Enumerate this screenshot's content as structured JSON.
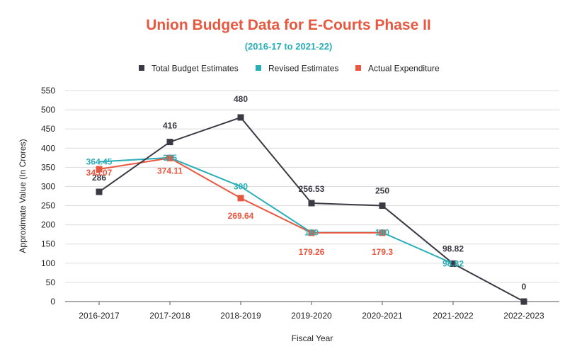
{
  "chart_data": {
    "type": "line",
    "title": "Union Budget Data for E-Courts Phase II",
    "subtitle": "(2016-17 to 2021-22)",
    "xlabel": "Fiscal Year",
    "ylabel": "Approximate Value (In Crores)",
    "categories": [
      "2016-2017",
      "2017-2018",
      "2018-2019",
      "2019-2020",
      "2020-2021",
      "2021-2022",
      "2022-2023"
    ],
    "ylim": [
      0,
      550
    ],
    "yticks": [
      0,
      50,
      100,
      150,
      200,
      250,
      300,
      350,
      400,
      450,
      500,
      550
    ],
    "grid": true,
    "legend_position": "top",
    "series": [
      {
        "name": "Total Budget Estimates",
        "color": "#3b3a44",
        "marker": "square",
        "values": [
          286,
          416,
          480,
          256.53,
          250,
          98.82,
          0
        ],
        "labels": [
          "286",
          "416",
          "480",
          "256.53",
          "250",
          "98.82",
          "0"
        ]
      },
      {
        "name": "Revised Estimates",
        "color": "#2aaeb8",
        "marker": "none",
        "values": [
          364.45,
          375,
          300,
          180,
          180,
          98.82,
          null
        ],
        "labels": [
          "364.45",
          "375",
          "300",
          "180",
          "180",
          "98.82",
          null
        ]
      },
      {
        "name": "Actual Expenditure",
        "color": "#e8573f",
        "marker": "square",
        "values": [
          345.07,
          374.11,
          269.64,
          179.26,
          179.3,
          null,
          null
        ],
        "labels": [
          "345.07",
          "374.11",
          "269.64",
          "179.26",
          "179.3",
          null,
          null
        ]
      }
    ]
  }
}
